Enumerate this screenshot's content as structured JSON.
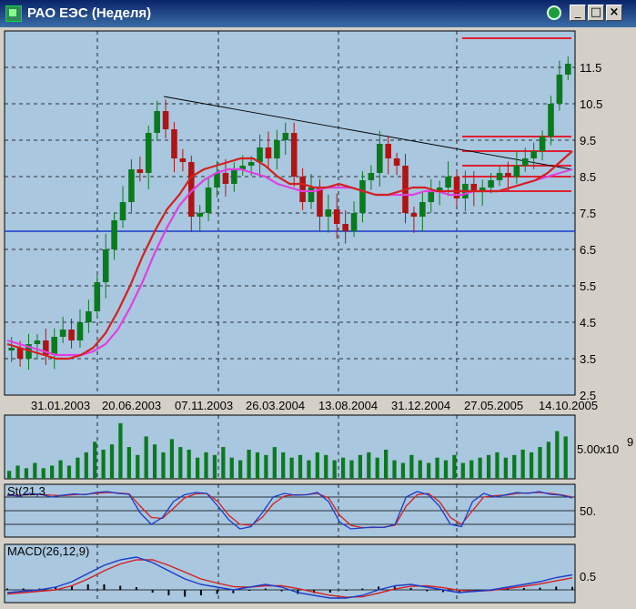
{
  "window": {
    "title": "РАО ЕЭС (Неделя)",
    "minimize_glyph": "_",
    "maximize_glyph": "□",
    "close_glyph": "×",
    "status_icon": "green-circle-icon",
    "app_icon": "chart-app-icon"
  },
  "colors": {
    "background": "#a9c7df",
    "frame": "#d4d0c8",
    "bull_candle": "#0a7a1e",
    "bear_candle": "#b01414",
    "ma_fast": "#d42020",
    "ma_slow": "#e040e0",
    "hline": "#1a3ccc",
    "resistance": "#e02030"
  },
  "chart_data": [
    {
      "type": "candlestick",
      "title": "",
      "x_labels": [
        "31.01.2003",
        "20.06.2003",
        "07.11.2003",
        "26.03.2004",
        "13.08.2004",
        "31.12.2004",
        "27.05.2005",
        "14.10.2005"
      ],
      "y_ticks": [
        "11.5",
        "10.5",
        "9.5",
        "8.5",
        "7.5",
        "6.5",
        "5.5",
        "4.5",
        "3.5",
        "2.5"
      ],
      "ylim": [
        2.5,
        12.5
      ],
      "price_path": [
        3.8,
        3.5,
        3.9,
        4.0,
        3.6,
        4.1,
        4.3,
        4.0,
        4.5,
        4.8,
        5.6,
        6.5,
        7.3,
        7.8,
        8.7,
        8.6,
        9.7,
        10.3,
        9.8,
        9.0,
        8.9,
        7.4,
        7.5,
        8.2,
        8.6,
        8.3,
        8.7,
        8.8,
        8.9,
        9.3,
        9.0,
        9.5,
        9.7,
        8.5,
        7.8,
        8.2,
        7.4,
        7.6,
        7.2,
        7.0,
        7.5,
        8.4,
        8.6,
        9.4,
        9.0,
        8.8,
        7.5,
        7.4,
        7.8,
        8.1,
        8.2,
        8.5,
        7.9,
        8.3,
        8.1,
        8.2,
        8.4,
        8.6,
        8.5,
        8.8,
        9.0,
        9.2,
        9.6,
        10.5,
        11.3,
        11.6
      ],
      "ma_fast": [
        3.9,
        3.8,
        3.7,
        3.6,
        3.5,
        3.5,
        3.6,
        3.8,
        4.2,
        4.8,
        5.5,
        6.3,
        7.0,
        7.6,
        8.0,
        8.5,
        8.7,
        8.8,
        8.9,
        9.0,
        9.0,
        8.8,
        8.5,
        8.3,
        8.3,
        8.2,
        8.2,
        8.3,
        8.2,
        8.1,
        8.0,
        8.0,
        8.1,
        8.2,
        8.2,
        8.1,
        8.1,
        8.1,
        8.1,
        8.1,
        8.1,
        8.2,
        8.3,
        8.4,
        8.6,
        8.9,
        9.2
      ],
      "ma_slow": [
        4.0,
        3.9,
        3.8,
        3.7,
        3.6,
        3.6,
        3.6,
        3.7,
        3.9,
        4.3,
        4.9,
        5.6,
        6.4,
        7.1,
        7.7,
        8.1,
        8.4,
        8.6,
        8.7,
        8.7,
        8.6,
        8.5,
        8.3,
        8.2,
        8.1,
        8.1,
        8.2,
        8.2,
        8.2,
        8.1,
        8.0,
        8.0,
        8.0,
        8.0,
        8.1,
        8.1,
        8.0,
        8.0,
        8.1,
        8.1,
        8.1,
        8.2,
        8.3,
        8.4,
        8.5,
        8.6,
        8.7
      ],
      "hlines": [
        7.0
      ],
      "resistance_levels": [
        12.3,
        9.6,
        9.2,
        8.8,
        8.5,
        8.1
      ]
    },
    {
      "type": "bar",
      "title": "",
      "y_label": "5.00x10",
      "y_label_exp": "9",
      "volume_values": [
        0.3,
        0.5,
        0.4,
        0.6,
        0.4,
        0.5,
        0.7,
        0.5,
        0.8,
        1.0,
        1.4,
        1.1,
        1.3,
        2.1,
        1.2,
        0.9,
        1.6,
        1.3,
        1.0,
        1.5,
        1.2,
        1.1,
        0.8,
        1.0,
        0.9,
        1.2,
        0.8,
        0.7,
        1.1,
        1.0,
        0.9,
        1.2,
        1.0,
        0.8,
        0.9,
        0.7,
        1.0,
        0.9,
        0.7,
        0.8,
        0.7,
        0.9,
        1.0,
        0.8,
        1.1,
        0.7,
        0.6,
        0.9,
        0.7,
        0.6,
        0.8,
        0.7,
        0.9,
        0.6,
        0.7,
        0.8,
        0.9,
        1.0,
        0.8,
        0.9,
        1.1,
        1.0,
        1.2,
        1.4,
        1.8,
        1.6
      ]
    },
    {
      "type": "line",
      "title": "St(21,3",
      "y_ticks": [
        "50."
      ],
      "ylim": [
        0,
        100
      ],
      "k_values": [
        85,
        82,
        88,
        86,
        80,
        84,
        87,
        85,
        90,
        92,
        88,
        86,
        45,
        20,
        35,
        70,
        85,
        90,
        88,
        60,
        30,
        10,
        15,
        45,
        80,
        88,
        84,
        85,
        90,
        70,
        25,
        10,
        12,
        14,
        13,
        20,
        80,
        92,
        85,
        60,
        20,
        15,
        70,
        88,
        80,
        85,
        90,
        88,
        92,
        86,
        84,
        78
      ],
      "d_values": [
        83,
        84,
        85,
        86,
        84,
        83,
        85,
        86,
        88,
        90,
        89,
        87,
        60,
        35,
        33,
        55,
        78,
        87,
        88,
        70,
        40,
        20,
        18,
        35,
        65,
        82,
        85,
        85,
        88,
        78,
        40,
        18,
        13,
        13,
        14,
        18,
        60,
        85,
        88,
        70,
        35,
        20,
        50,
        80,
        83,
        84,
        88,
        89,
        90,
        88,
        85,
        80
      ]
    },
    {
      "type": "line",
      "title": "MACD(26,12,9)",
      "y_ticks": [
        "0.5"
      ],
      "ylim": [
        -0.4,
        1.6
      ],
      "macd": [
        -0.1,
        -0.05,
        0.0,
        0.1,
        0.3,
        0.6,
        0.9,
        1.1,
        1.2,
        1.0,
        0.7,
        0.4,
        0.2,
        0.1,
        0.0,
        0.1,
        0.2,
        0.1,
        -0.1,
        -0.2,
        -0.3,
        -0.3,
        -0.2,
        0.0,
        0.15,
        0.2,
        0.1,
        0.0,
        -0.1,
        -0.05,
        0.0,
        0.1,
        0.2,
        0.3,
        0.45,
        0.55
      ],
      "signal": [
        -0.15,
        -0.1,
        -0.05,
        0.0,
        0.15,
        0.4,
        0.7,
        0.95,
        1.1,
        1.1,
        0.9,
        0.65,
        0.4,
        0.25,
        0.12,
        0.1,
        0.15,
        0.15,
        0.05,
        -0.08,
        -0.2,
        -0.27,
        -0.25,
        -0.12,
        0.03,
        0.13,
        0.15,
        0.08,
        -0.02,
        -0.05,
        -0.02,
        0.05,
        0.13,
        0.22,
        0.33,
        0.44
      ],
      "histogram": [
        0.05,
        0.05,
        0.05,
        0.1,
        0.15,
        0.2,
        0.2,
        0.15,
        0.1,
        -0.1,
        -0.2,
        -0.25,
        -0.2,
        -0.15,
        -0.12,
        0.0,
        0.05,
        -0.05,
        -0.15,
        -0.12,
        -0.1,
        -0.03,
        0.05,
        0.12,
        0.12,
        0.07,
        -0.05,
        -0.08,
        -0.08,
        0.0,
        0.02,
        0.05,
        0.07,
        0.08,
        0.12,
        0.11
      ]
    }
  ]
}
